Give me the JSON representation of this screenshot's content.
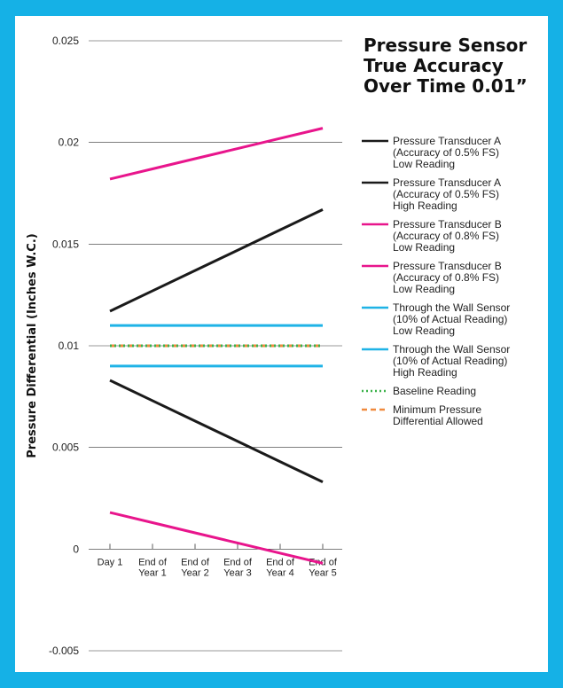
{
  "colors": {
    "background": "#15b1e6",
    "panel": "#ffffff",
    "black": "#1a1a1a",
    "magenta": "#e8158c",
    "cyan": "#1fb3e6",
    "green": "#3bb24a",
    "orange": "#f08a3e"
  },
  "chart_data": {
    "type": "line",
    "title": "Pressure Sensor True Accuracy Over Time 0.01”",
    "ylabel": "Pressure Differential (Inches W.C.)",
    "xlabel": "",
    "categories": [
      "Day 1",
      "End of\nYear 1",
      "End of\nYear 2",
      "End of\nYear 3",
      "End of\nYear 4",
      "End of\nYear 5"
    ],
    "ylim": [
      -0.005,
      0.025
    ],
    "yticks": [
      "0.025",
      "0.02",
      "0.015",
      "0.01",
      "0.005",
      "0",
      "-0.005"
    ],
    "ytick_values": [
      0.025,
      0.02,
      0.015,
      0.01,
      0.005,
      0,
      -0.005
    ],
    "grid": "horizontal",
    "legend_position": "right",
    "series": [
      {
        "name": "Pressure Transducer A\n(Accuracy of 0.5% FS)\nLow Reading",
        "color": "#1a1a1a",
        "style": "solid",
        "values": [
          0.0083,
          0.0073,
          0.0063,
          0.0053,
          0.0043,
          0.0033
        ]
      },
      {
        "name": "Pressure Transducer A\n(Accuracy of 0.5% FS)\nHigh Reading",
        "color": "#1a1a1a",
        "style": "solid",
        "values": [
          0.0117,
          0.0127,
          0.0137,
          0.0147,
          0.0157,
          0.0167
        ]
      },
      {
        "name": "Pressure Transducer B\n(Accuracy of 0.8% FS)\nLow Reading",
        "color": "#e8158c",
        "style": "solid",
        "values": [
          0.0182,
          0.0187,
          0.0192,
          0.0197,
          0.0202,
          0.0207
        ]
      },
      {
        "name": "Pressure Transducer B\n(Accuracy of 0.8% FS)\nLow Reading",
        "color": "#e8158c",
        "style": "solid",
        "values": [
          0.0018,
          0.0013,
          0.0008,
          0.0003,
          -0.0002,
          -0.0007
        ]
      },
      {
        "name": "Through the Wall Sensor\n(10% of Actual Reading)\nLow Reading",
        "color": "#1fb3e6",
        "style": "solid",
        "values": [
          0.011,
          0.011,
          0.011,
          0.011,
          0.011,
          0.011
        ]
      },
      {
        "name": "Through the Wall Sensor\n(10% of Actual Reading)\nHigh Reading",
        "color": "#1fb3e6",
        "style": "solid",
        "values": [
          0.009,
          0.009,
          0.009,
          0.009,
          0.009,
          0.009
        ]
      },
      {
        "name": "Baseline Reading",
        "color": "#3bb24a",
        "style": "dotted",
        "values": [
          0.01,
          0.01,
          0.01,
          0.01,
          0.01,
          0.01
        ]
      },
      {
        "name": "Minimum Pressure\nDifferential Allowed",
        "color": "#f08a3e",
        "style": "dashed",
        "values": [
          0.01,
          0.01,
          0.01,
          0.01,
          0.01,
          0.01
        ]
      }
    ]
  }
}
